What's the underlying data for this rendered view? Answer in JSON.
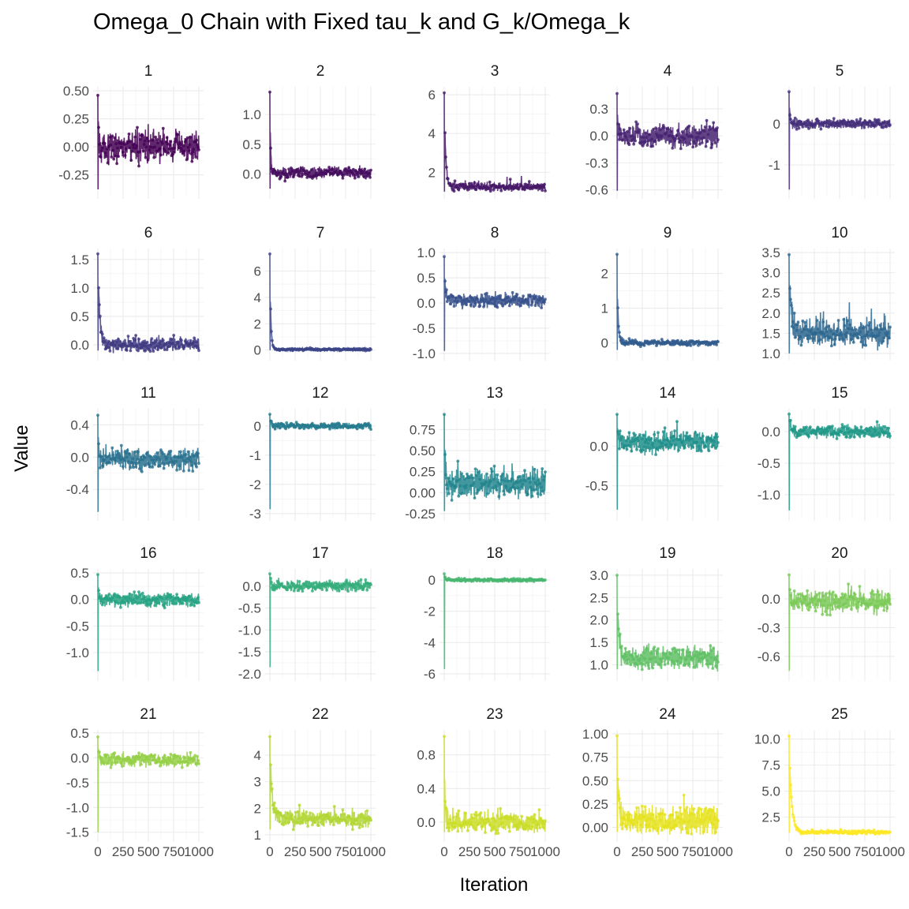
{
  "title": "Omega_0 Chain with Fixed tau_k and G_k/Omega_k",
  "chart_data": {
    "type": "line",
    "title": "Omega_0 Chain with Fixed tau_k and G_k/Omega_k",
    "xlabel": "Iteration",
    "ylabel": "Value",
    "xlim": [
      0,
      1000
    ],
    "x_ticks": [
      0,
      250,
      500,
      750,
      1000
    ],
    "x_tick_labels": [
      "0",
      "250",
      "500",
      "750",
      "1000"
    ],
    "grid": true,
    "facet_layout": "5x5",
    "series_colors": [
      "#440154",
      "#450d5e",
      "#461868",
      "#462371",
      "#442e7a",
      "#403a81",
      "#3b4587",
      "#36508b",
      "#315b8d",
      "#2d668e",
      "#29718e",
      "#257b8e",
      "#22858d",
      "#1f8f8b",
      "#209988",
      "#26a382",
      "#34ad7b",
      "#48b771",
      "#60c065",
      "#7ac957",
      "#95d047",
      "#b1d635",
      "#cbdd26",
      "#e5e21e",
      "#fde725"
    ],
    "panels": [
      {
        "name": "1",
        "ylim": [
          -0.4,
          0.5
        ],
        "yticks": [
          -0.25,
          0,
          0.25,
          0.5
        ],
        "ytick_labels": [
          "-0.25",
          "0.00",
          "0.25",
          "0.50"
        ],
        "center": 0.0,
        "noise": 0.08,
        "burnin_peak": 0.46,
        "burnin_trough": -0.38,
        "decay": 6,
        "spikes": 0.16
      },
      {
        "name": "2",
        "ylim": [
          -0.3,
          1.4
        ],
        "yticks": [
          0,
          0.5,
          1.0
        ],
        "ytick_labels": [
          "0.0",
          "0.5",
          "1.0"
        ],
        "center": 0.02,
        "noise": 0.06,
        "burnin_peak": 1.38,
        "burnin_trough": -0.25,
        "decay": 8,
        "spikes": 0.12
      },
      {
        "name": "3",
        "ylim": [
          1.0,
          6.2
        ],
        "yticks": [
          2,
          4,
          6
        ],
        "ytick_labels": [
          "2",
          "4",
          "6"
        ],
        "center": 1.25,
        "noise": 0.12,
        "burnin_peak": 6.1,
        "burnin_trough": 1.0,
        "decay": 18,
        "spikes": 0.9
      },
      {
        "name": "4",
        "ylim": [
          -0.62,
          0.5
        ],
        "yticks": [
          -0.6,
          -0.3,
          0,
          0.3
        ],
        "ytick_labels": [
          "-0.6",
          "-0.3",
          "0.0",
          "0.3"
        ],
        "center": 0.0,
        "noise": 0.08,
        "burnin_peak": 0.47,
        "burnin_trough": -0.61,
        "decay": 6,
        "spikes": 0.12
      },
      {
        "name": "5",
        "ylim": [
          -1.65,
          0.8
        ],
        "yticks": [
          -1,
          0
        ],
        "ytick_labels": [
          "-1",
          "0"
        ],
        "center": 0.0,
        "noise": 0.07,
        "burnin_peak": 0.78,
        "burnin_trough": -1.6,
        "decay": 8,
        "spikes": 0.12
      },
      {
        "name": "6",
        "ylim": [
          -0.15,
          1.62
        ],
        "yticks": [
          0,
          0.5,
          1.0,
          1.5
        ],
        "ytick_labels": [
          "0.0",
          "0.5",
          "1.0",
          "1.5"
        ],
        "center": 0.0,
        "noise": 0.07,
        "burnin_peak": 1.6,
        "burnin_trough": -0.1,
        "decay": 22,
        "spikes": 0.18
      },
      {
        "name": "7",
        "ylim": [
          -0.25,
          7.4
        ],
        "yticks": [
          0,
          2,
          4,
          6
        ],
        "ytick_labels": [
          "0",
          "2",
          "4",
          "6"
        ],
        "center": 0.05,
        "noise": 0.05,
        "burnin_peak": 7.3,
        "burnin_trough": 0.0,
        "decay": 12,
        "spikes": 0.15
      },
      {
        "name": "8",
        "ylim": [
          -1.0,
          1.0
        ],
        "yticks": [
          -1,
          -0.5,
          0,
          0.5,
          1
        ],
        "ytick_labels": [
          "-1.0",
          "-0.5",
          "0.0",
          "0.5",
          "1.0"
        ],
        "center": 0.05,
        "noise": 0.08,
        "burnin_peak": 0.92,
        "burnin_trough": -0.95,
        "decay": 10,
        "spikes": 0.18
      },
      {
        "name": "9",
        "ylim": [
          -0.3,
          2.6
        ],
        "yticks": [
          0,
          1,
          2
        ],
        "ytick_labels": [
          "0",
          "1",
          "2"
        ],
        "center": 0.0,
        "noise": 0.05,
        "burnin_peak": 2.55,
        "burnin_trough": -0.2,
        "decay": 12,
        "spikes": 0.12
      },
      {
        "name": "10",
        "ylim": [
          1.0,
          3.5
        ],
        "yticks": [
          1,
          1.5,
          2,
          2.5,
          3,
          3.5
        ],
        "ytick_labels": [
          "1.0",
          "1.5",
          "2.0",
          "2.5",
          "3.0",
          "3.5"
        ],
        "center": 1.5,
        "noise": 0.2,
        "burnin_peak": 3.45,
        "burnin_trough": 1.0,
        "decay": 25,
        "spikes": 0.9
      },
      {
        "name": "11",
        "ylim": [
          -0.7,
          0.55
        ],
        "yticks": [
          -0.4,
          0,
          0.4
        ],
        "ytick_labels": [
          "-0.4",
          "0.0",
          "0.4"
        ],
        "center": -0.02,
        "noise": 0.08,
        "burnin_peak": 0.52,
        "burnin_trough": -0.68,
        "decay": 8,
        "spikes": 0.18
      },
      {
        "name": "12",
        "ylim": [
          -3.0,
          0.45
        ],
        "yticks": [
          -3,
          -2,
          -1,
          0
        ],
        "ytick_labels": [
          "-3",
          "-2",
          "-1",
          "0"
        ],
        "center": 0.0,
        "noise": 0.06,
        "burnin_peak": 0.4,
        "burnin_trough": -2.85,
        "decay": 14,
        "spikes": 0.1
      },
      {
        "name": "13",
        "ylim": [
          -0.25,
          0.95
        ],
        "yticks": [
          -0.25,
          0,
          0.25,
          0.5,
          0.75
        ],
        "ytick_labels": [
          "-0.25",
          "0.00",
          "0.25",
          "0.50",
          "0.75"
        ],
        "center": 0.1,
        "noise": 0.1,
        "burnin_peak": 0.93,
        "burnin_trough": -0.22,
        "decay": 10,
        "spikes": 0.25
      },
      {
        "name": "14",
        "ylim": [
          -0.85,
          0.42
        ],
        "yticks": [
          -0.5,
          0
        ],
        "ytick_labels": [
          "-0.5",
          "0.0"
        ],
        "center": 0.05,
        "noise": 0.08,
        "burnin_peak": 0.4,
        "burnin_trough": -0.8,
        "decay": 12,
        "spikes": 0.2
      },
      {
        "name": "15",
        "ylim": [
          -1.3,
          0.3
        ],
        "yticks": [
          -1.0,
          -0.5,
          0
        ],
        "ytick_labels": [
          "-1.0",
          "-0.5",
          "0.0"
        ],
        "center": 0.0,
        "noise": 0.06,
        "burnin_peak": 0.28,
        "burnin_trough": -1.25,
        "decay": 14,
        "spikes": 0.15
      },
      {
        "name": "16",
        "ylim": [
          -1.4,
          0.5
        ],
        "yticks": [
          -1,
          -0.5,
          0,
          0.5
        ],
        "ytick_labels": [
          "-1.0",
          "-0.5",
          "0.0",
          "0.5"
        ],
        "center": 0.0,
        "noise": 0.08,
        "burnin_peak": 0.47,
        "burnin_trough": -1.35,
        "decay": 10,
        "spikes": 0.18
      },
      {
        "name": "17",
        "ylim": [
          -2.0,
          0.3
        ],
        "yticks": [
          -2,
          -1.5,
          -1,
          -0.5,
          0
        ],
        "ytick_labels": [
          "-2.0",
          "-1.5",
          "-1.0",
          "-0.5",
          "0.0"
        ],
        "center": 0.0,
        "noise": 0.07,
        "burnin_peak": 0.28,
        "burnin_trough": -1.85,
        "decay": 12,
        "spikes": 0.18
      },
      {
        "name": "18",
        "ylim": [
          -6.0,
          0.45
        ],
        "yticks": [
          -6,
          -4,
          -2,
          0
        ],
        "ytick_labels": [
          "-6",
          "-4",
          "-2",
          "0"
        ],
        "center": 0.0,
        "noise": 0.06,
        "burnin_peak": 0.4,
        "burnin_trough": -5.7,
        "decay": 14,
        "spikes": 0.15
      },
      {
        "name": "19",
        "ylim": [
          0.8,
          3.05
        ],
        "yticks": [
          1,
          1.5,
          2,
          2.5,
          3
        ],
        "ytick_labels": [
          "1.0",
          "1.5",
          "2.0",
          "2.5",
          "3.0"
        ],
        "center": 1.15,
        "noise": 0.14,
        "burnin_peak": 3.0,
        "burnin_trough": 0.9,
        "decay": 20,
        "spikes": 0.55
      },
      {
        "name": "20",
        "ylim": [
          -0.78,
          0.27
        ],
        "yticks": [
          -0.6,
          -0.3,
          0
        ],
        "ytick_labels": [
          "-0.6",
          "-0.3",
          "0.0"
        ],
        "center": -0.03,
        "noise": 0.07,
        "burnin_peak": 0.25,
        "burnin_trough": -0.75,
        "decay": 10,
        "spikes": 0.15
      },
      {
        "name": "21",
        "ylim": [
          -1.55,
          0.48
        ],
        "yticks": [
          -1.5,
          -1,
          -0.5,
          0,
          0.5
        ],
        "ytick_labels": [
          "-1.5",
          "-1.0",
          "-0.5",
          "0.0",
          "0.5"
        ],
        "center": -0.05,
        "noise": 0.08,
        "burnin_peak": 0.42,
        "burnin_trough": -1.5,
        "decay": 12,
        "spikes": 0.18
      },
      {
        "name": "22",
        "ylim": [
          1.0,
          4.8
        ],
        "yticks": [
          1,
          2,
          3,
          4
        ],
        "ytick_labels": [
          "1",
          "2",
          "3",
          "4"
        ],
        "center": 1.6,
        "noise": 0.18,
        "burnin_peak": 4.7,
        "burnin_trough": 1.2,
        "decay": 25,
        "spikes": 0.7
      },
      {
        "name": "23",
        "ylim": [
          -0.15,
          1.05
        ],
        "yticks": [
          0,
          0.4,
          0.8
        ],
        "ytick_labels": [
          "0.0",
          "0.4",
          "0.8"
        ],
        "center": 0.0,
        "noise": 0.07,
        "burnin_peak": 1.02,
        "burnin_trough": -0.12,
        "decay": 10,
        "spikes": 0.18
      },
      {
        "name": "24",
        "ylim": [
          -0.08,
          1.0
        ],
        "yticks": [
          0,
          0.25,
          0.5,
          0.75,
          1
        ],
        "ytick_labels": [
          "0.00",
          "0.25",
          "0.50",
          "0.75",
          "1.00"
        ],
        "center": 0.08,
        "noise": 0.09,
        "burnin_peak": 0.98,
        "burnin_trough": -0.05,
        "decay": 20,
        "spikes": 0.25
      },
      {
        "name": "25",
        "ylim": [
          0.8,
          10.5
        ],
        "yticks": [
          2.5,
          5,
          7.5,
          10
        ],
        "ytick_labels": [
          "2.5",
          "5.0",
          "7.5",
          "10.0"
        ],
        "center": 1.05,
        "noise": 0.12,
        "burnin_peak": 10.3,
        "burnin_trough": 1.0,
        "decay": 30,
        "spikes": 0.6
      }
    ]
  }
}
